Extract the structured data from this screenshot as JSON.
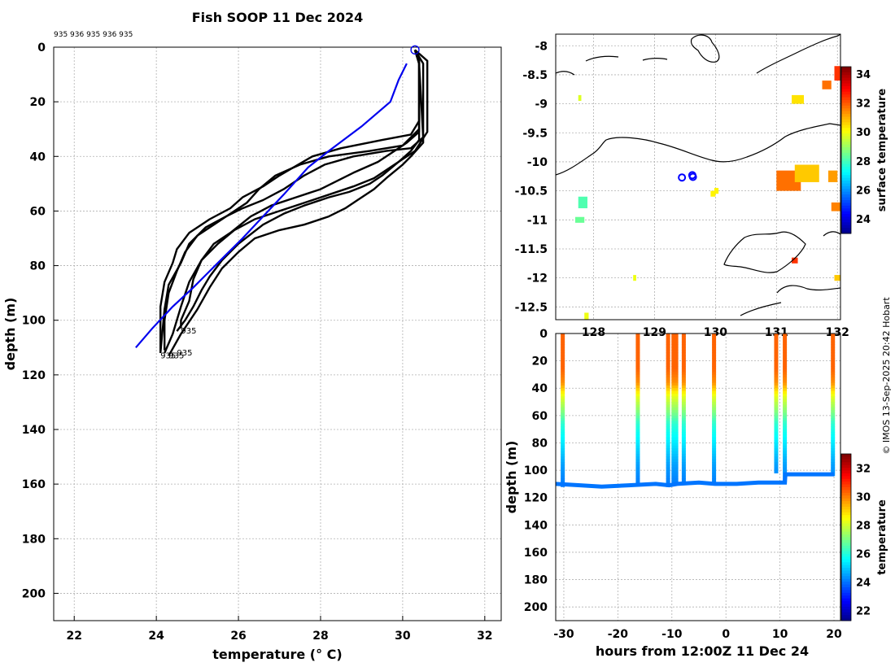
{
  "figure": {
    "title": "Fish SOOP 11 Dec 2024",
    "credit": "© IMOS 13-Sep-2025 20:42 Hobart",
    "drop_ids_text": "935 936 935 936 935"
  },
  "colors": {
    "profile": "#000000",
    "climatology": "#0000ee",
    "grid": "#b0b0b0",
    "coast": "#000000",
    "map_marker": "#0000ff"
  },
  "chart_data": [
    {
      "id": "profiles",
      "type": "line",
      "title": "Fish SOOP 11 Dec 2024",
      "xlabel": "temperature (° C)",
      "ylabel": "depth (m)",
      "xlim": [
        21.5,
        32.4
      ],
      "ylim": [
        210,
        0
      ],
      "xticks": [
        22,
        24,
        26,
        28,
        30,
        32
      ],
      "yticks": [
        0,
        20,
        40,
        60,
        80,
        100,
        120,
        140,
        160,
        180,
        200
      ],
      "grid": true,
      "drop_labels": [
        "935",
        "935",
        "935",
        "935"
      ],
      "series": [
        {
          "name": "profile",
          "points": [
            [
              30.3,
              1
            ],
            [
              30.4,
              5
            ],
            [
              30.4,
              27
            ],
            [
              30.2,
              32
            ],
            [
              29.5,
              34
            ],
            [
              28.5,
              37
            ],
            [
              27.8,
              40
            ],
            [
              27.0,
              47
            ],
            [
              26.6,
              51
            ],
            [
              26.1,
              55
            ],
            [
              25.8,
              59
            ],
            [
              25.3,
              63
            ],
            [
              24.8,
              68
            ],
            [
              24.5,
              74
            ],
            [
              24.4,
              79
            ],
            [
              24.2,
              86
            ],
            [
              24.1,
              95
            ],
            [
              24.1,
              104
            ],
            [
              24.1,
              112
            ]
          ]
        },
        {
          "name": "profile",
          "points": [
            [
              30.3,
              1
            ],
            [
              30.4,
              6
            ],
            [
              30.4,
              30
            ],
            [
              30.0,
              36
            ],
            [
              29.2,
              38
            ],
            [
              28.2,
              40
            ],
            [
              27.5,
              43
            ],
            [
              26.9,
              47
            ],
            [
              26.5,
              52
            ],
            [
              26.2,
              57
            ],
            [
              25.8,
              61
            ],
            [
              25.4,
              65
            ],
            [
              25.0,
              69
            ],
            [
              24.7,
              75
            ],
            [
              24.5,
              82
            ],
            [
              24.3,
              90
            ],
            [
              24.2,
              100
            ],
            [
              24.2,
              111
            ]
          ]
        },
        {
          "name": "profile",
          "points": [
            [
              30.3,
              1
            ],
            [
              30.4,
              6
            ],
            [
              30.5,
              33
            ],
            [
              30.2,
              37
            ],
            [
              29.6,
              38
            ],
            [
              28.8,
              40
            ],
            [
              28.1,
              43
            ],
            [
              27.6,
              47
            ],
            [
              27.1,
              52
            ],
            [
              26.6,
              56
            ],
            [
              26.1,
              59
            ],
            [
              25.7,
              62
            ],
            [
              25.2,
              66
            ],
            [
              24.8,
              72
            ],
            [
              24.6,
              79
            ],
            [
              24.3,
              87
            ],
            [
              24.2,
              96
            ],
            [
              24.1,
              112
            ]
          ]
        },
        {
          "name": "profile",
          "points": [
            [
              30.3,
              1
            ],
            [
              30.4,
              5
            ],
            [
              30.4,
              31
            ],
            [
              30.1,
              35
            ],
            [
              29.8,
              38
            ],
            [
              29.4,
              42
            ],
            [
              28.8,
              46
            ],
            [
              28.0,
              52
            ],
            [
              27.4,
              55
            ],
            [
              26.8,
              58
            ],
            [
              26.3,
              62
            ],
            [
              25.8,
              68
            ],
            [
              25.4,
              72
            ],
            [
              25.1,
              78
            ],
            [
              24.9,
              85
            ],
            [
              24.8,
              93
            ],
            [
              24.6,
              100
            ],
            [
              24.6,
              103
            ]
          ]
        },
        {
          "name": "profile",
          "points": [
            [
              30.3,
              1
            ],
            [
              30.4,
              6
            ],
            [
              30.4,
              34
            ],
            [
              30.2,
              38
            ],
            [
              29.9,
              42
            ],
            [
              29.5,
              47
            ],
            [
              29.2,
              50
            ],
            [
              28.7,
              53
            ],
            [
              28.2,
              55
            ],
            [
              27.6,
              58
            ],
            [
              27.1,
              61
            ],
            [
              26.6,
              65
            ],
            [
              26.0,
              72
            ],
            [
              25.6,
              78
            ],
            [
              25.3,
              84
            ],
            [
              25.1,
              89
            ],
            [
              24.9,
              95
            ],
            [
              24.7,
              100
            ],
            [
              24.5,
              104
            ]
          ]
        },
        {
          "name": "profile",
          "points": [
            [
              30.3,
              1
            ],
            [
              30.5,
              6
            ],
            [
              30.5,
              35
            ],
            [
              30.2,
              40
            ],
            [
              30.0,
              43
            ],
            [
              29.6,
              48
            ],
            [
              29.3,
              52
            ],
            [
              28.9,
              56
            ],
            [
              28.6,
              59
            ],
            [
              28.2,
              62
            ],
            [
              27.6,
              65
            ],
            [
              27.0,
              67
            ],
            [
              26.4,
              70
            ],
            [
              26.0,
              75
            ],
            [
              25.6,
              81
            ],
            [
              25.3,
              88
            ],
            [
              25.0,
              96
            ],
            [
              24.6,
              105
            ],
            [
              24.3,
              113
            ]
          ]
        },
        {
          "name": "profile",
          "points": [
            [
              30.3,
              1
            ],
            [
              30.6,
              5
            ],
            [
              30.6,
              31
            ],
            [
              30.3,
              38
            ],
            [
              29.8,
              43
            ],
            [
              29.3,
              48
            ],
            [
              28.8,
              51
            ],
            [
              28.2,
              54
            ],
            [
              27.6,
              57
            ],
            [
              27.0,
              60
            ],
            [
              26.4,
              63
            ],
            [
              25.9,
              67
            ],
            [
              25.5,
              72
            ],
            [
              25.1,
              78
            ],
            [
              24.8,
              86
            ],
            [
              24.6,
              95
            ],
            [
              24.4,
              105
            ],
            [
              24.2,
              112
            ]
          ]
        }
      ],
      "climatology": {
        "name": "climatology",
        "points": [
          [
            30.1,
            6
          ],
          [
            29.9,
            12
          ],
          [
            29.7,
            20
          ],
          [
            29.0,
            29
          ],
          [
            28.2,
            38
          ],
          [
            27.7,
            44
          ],
          [
            27.1,
            54
          ],
          [
            26.6,
            62
          ],
          [
            26.1,
            70
          ],
          [
            25.5,
            79
          ],
          [
            24.9,
            88
          ],
          [
            24.4,
            95
          ],
          [
            23.9,
            103
          ],
          [
            23.5,
            110
          ]
        ]
      }
    },
    {
      "id": "map",
      "type": "heatmap",
      "xlabel": "",
      "ylabel": "",
      "xlim": [
        127.38,
        132.05
      ],
      "ylim": [
        -12.72,
        -7.8
      ],
      "xticks_labels": [
        "128",
        "129",
        "130",
        "131",
        "132"
      ],
      "yticks": [
        -8,
        -8.5,
        -9,
        -9.5,
        -10,
        -10.5,
        -11,
        -11.5,
        -12,
        -12.5
      ],
      "colorbar_label": "surface temperature",
      "colorbar_ticks": [
        24,
        26,
        28,
        30,
        32,
        34
      ],
      "colorbar_range": [
        23,
        34.5
      ],
      "markers": [
        {
          "lon": 129.45,
          "lat": -10.27
        },
        {
          "lon": 129.62,
          "lat": -10.23
        },
        {
          "lon": 129.63,
          "lat": -10.26
        }
      ],
      "patches": [
        {
          "lon": [
            131.95,
            132.05
          ],
          "lat": [
            -8.6,
            -8.35
          ],
          "value": 32.5
        },
        {
          "lon": [
            131.75,
            131.9
          ],
          "lat": [
            -8.75,
            -8.6
          ],
          "value": 31.8
        },
        {
          "lon": [
            131.25,
            131.45
          ],
          "lat": [
            -9.0,
            -8.85
          ],
          "value": 30.5
        },
        {
          "lon": [
            131.0,
            131.4
          ],
          "lat": [
            -10.5,
            -10.15
          ],
          "value": 31.8
        },
        {
          "lon": [
            131.3,
            131.7
          ],
          "lat": [
            -10.35,
            -10.05
          ],
          "value": 30.8
        },
        {
          "lon": [
            131.85,
            132.0
          ],
          "lat": [
            -10.35,
            -10.15
          ],
          "value": 31.3
        },
        {
          "lon": [
            131.9,
            132.05
          ],
          "lat": [
            -10.85,
            -10.7
          ],
          "value": 31.6
        },
        {
          "lon": [
            131.25,
            131.35
          ],
          "lat": [
            -11.75,
            -11.65
          ],
          "value": 32.5
        },
        {
          "lon": [
            131.95,
            132.05
          ],
          "lat": [
            -12.05,
            -11.95
          ],
          "value": 30.8
        },
        {
          "lon": [
            127.75,
            127.8
          ],
          "lat": [
            -8.95,
            -8.85
          ],
          "value": 29.8
        },
        {
          "lon": [
            127.75,
            127.9
          ],
          "lat": [
            -10.8,
            -10.6
          ],
          "value": 28.2
        },
        {
          "lon": [
            127.7,
            127.85
          ],
          "lat": [
            -11.05,
            -10.95
          ],
          "value": 28.5
        },
        {
          "lon": [
            129.92,
            130.0
          ],
          "lat": [
            -10.6,
            -10.5
          ],
          "value": 30.3
        },
        {
          "lon": [
            129.98,
            130.05
          ],
          "lat": [
            -10.55,
            -10.45
          ],
          "value": 30.3
        },
        {
          "lon": [
            127.85,
            127.92
          ],
          "lat": [
            -12.72,
            -12.6
          ],
          "value": 30.0
        },
        {
          "lon": [
            128.65,
            128.7
          ],
          "lat": [
            -12.05,
            -11.95
          ],
          "value": 30.0
        }
      ]
    },
    {
      "id": "section",
      "type": "heatmap",
      "xlabel": "hours from 12:00Z 11 Dec 24",
      "ylabel": "depth (m)",
      "xlim": [
        -31.5,
        21.2
      ],
      "ylim": [
        210,
        0
      ],
      "xticks": [
        -30,
        -20,
        -10,
        0,
        10,
        20
      ],
      "yticks": [
        0,
        20,
        40,
        60,
        80,
        100,
        120,
        140,
        160,
        180,
        200
      ],
      "colorbar_label": "temperature",
      "colorbar_ticks": [
        22,
        24,
        26,
        28,
        30,
        32
      ],
      "colorbar_range": [
        21.3,
        33
      ],
      "casts": [
        {
          "hour": -30.2,
          "max_depth": 111
        },
        {
          "hour": -16.3,
          "max_depth": 110
        },
        {
          "hour": -10.7,
          "max_depth": 111
        },
        {
          "hour": -9.7,
          "max_depth": 110
        },
        {
          "hour": -9.2,
          "max_depth": 110
        },
        {
          "hour": -7.8,
          "max_depth": 109
        },
        {
          "hour": -2.2,
          "max_depth": 110
        },
        {
          "hour": 9.3,
          "max_depth": 102
        },
        {
          "hour": 10.9,
          "max_depth": 109
        },
        {
          "hour": 19.8,
          "max_depth": 103
        }
      ],
      "bottom_track": [
        [
          -31.5,
          110
        ],
        [
          -27,
          111
        ],
        [
          -23,
          112
        ],
        [
          -18,
          111
        ],
        [
          -13,
          110
        ],
        [
          -10.5,
          111
        ],
        [
          -9,
          110
        ],
        [
          -5,
          109
        ],
        [
          -2,
          110
        ],
        [
          2,
          110
        ],
        [
          6,
          109
        ],
        [
          10.9,
          109
        ],
        [
          11,
          103
        ],
        [
          15,
          103
        ],
        [
          20,
          103
        ]
      ]
    }
  ]
}
